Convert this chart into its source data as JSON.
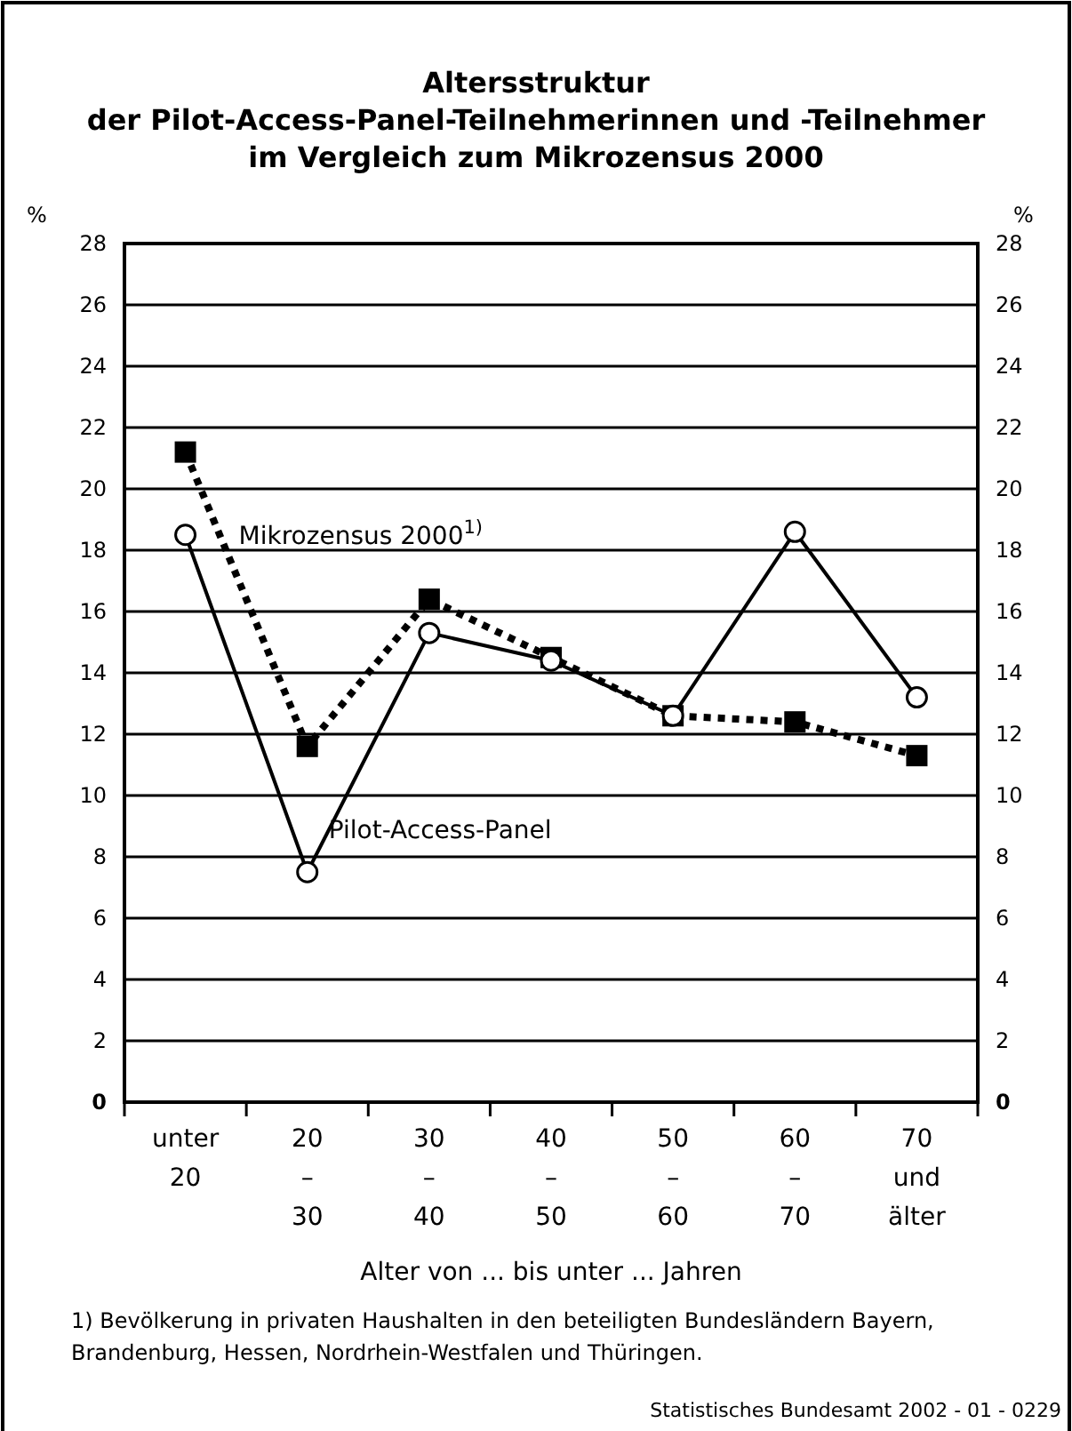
{
  "chart_data": {
    "type": "line",
    "title": "Altersstruktur\nder Pilot-Access-Panel-Teilnehmerinnen und -Teilnehmer\nim Vergleich zum Mikrozensus 2000",
    "xlabel": "Alter von ... bis unter ... Jahren",
    "ylabel": "%",
    "y2label": "%",
    "categories": [
      "unter\n20",
      "20\n–\n30",
      "30\n–\n40",
      "40\n–\n50",
      "50\n–\n60",
      "60\n–\n70",
      "70\nund\nälter"
    ],
    "series": [
      {
        "name": "Mikrozensus 2000$^{1)}$",
        "color": "#000000",
        "marker": "square",
        "line_style": "dotted",
        "values": [
          21.2,
          11.6,
          16.4,
          14.5,
          12.6,
          12.4,
          11.3
        ]
      },
      {
        "name": "Pilot-Access-Panel",
        "color": "#000000",
        "marker": "circle",
        "line_style": "solid",
        "values": [
          18.5,
          7.5,
          15.3,
          14.4,
          12.6,
          18.6,
          13.2
        ]
      }
    ],
    "ylim": [
      0,
      28
    ],
    "yticks": [
      0,
      2,
      4,
      6,
      8,
      10,
      12,
      14,
      16,
      18,
      20,
      22,
      24,
      26,
      28
    ],
    "y2lim": [
      0,
      28
    ],
    "y2ticks": [
      0,
      2,
      4,
      6,
      8,
      10,
      12,
      14,
      16,
      18,
      20,
      22,
      24,
      26,
      28
    ],
    "grid": "y",
    "annotations": [
      "1) Bevölkerung in privaten Haushalten in den beteiligten Bundesländern Bayern,\nBrandenburg, Hessen, Nordrhein-Westfalen und Thüringen.",
      "Statistisches Bundesamt 2002 - 01 - 0229"
    ]
  }
}
